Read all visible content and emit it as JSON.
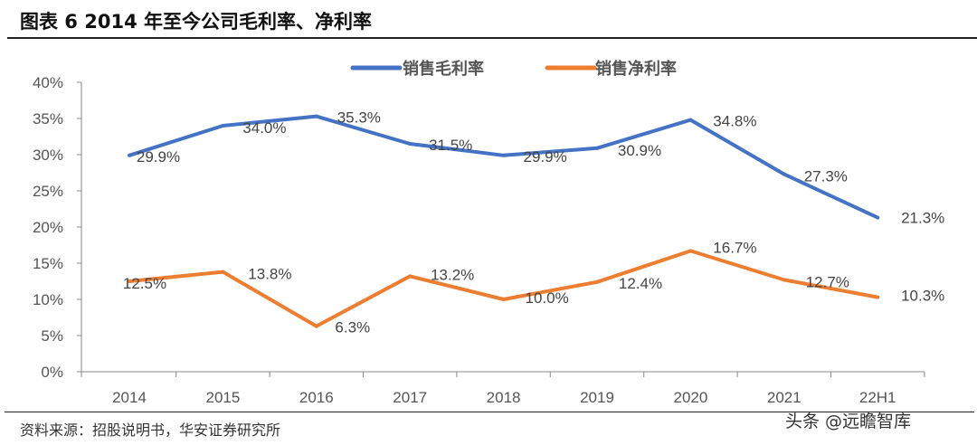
{
  "title": "图表 6 2014 年至今公司毛利率、净利率",
  "source": "资料来源：招股说明书，华安证券研究所",
  "watermark": "头条 @远瞻智库",
  "chart_data": {
    "type": "line",
    "categories": [
      "2014",
      "2015",
      "2016",
      "2017",
      "2018",
      "2019",
      "2020",
      "2021",
      "22H1"
    ],
    "ylim": [
      0,
      40
    ],
    "yticks": [
      "0%",
      "5%",
      "10%",
      "15%",
      "20%",
      "25%",
      "30%",
      "35%",
      "40%"
    ],
    "legend_position": "top",
    "grid": false,
    "series": [
      {
        "name": "销售毛利率",
        "color": "#4472C4",
        "values": [
          29.9,
          34.0,
          35.3,
          31.5,
          29.9,
          30.9,
          34.8,
          27.3,
          21.3
        ],
        "labels": [
          "29.9%",
          "34.0%",
          "35.3%",
          "31.5%",
          "29.9%",
          "30.9%",
          "34.8%",
          "27.3%",
          "21.3%"
        ]
      },
      {
        "name": "销售净利率",
        "color": "#ED7D31",
        "values": [
          12.5,
          13.8,
          6.3,
          13.2,
          10.0,
          12.4,
          16.7,
          12.7,
          10.3
        ],
        "labels": [
          "12.5%",
          "13.8%",
          "6.3%",
          "13.2%",
          "10.0%",
          "12.4%",
          "16.7%",
          "12.7%",
          "10.3%"
        ]
      }
    ]
  }
}
